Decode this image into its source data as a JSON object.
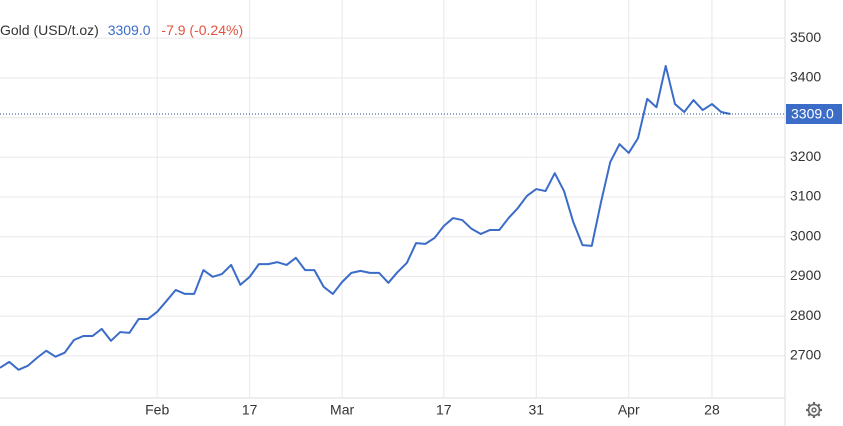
{
  "chart_data": {
    "type": "line",
    "title": "Gold (USD/t.oz)",
    "last_value_label": "3309.0",
    "change": "-7.9 (-0.24%)",
    "color": "#3b6cc8",
    "change_color": "#e0533f",
    "x": [
      0,
      1,
      2,
      3,
      4,
      5,
      6,
      7,
      8,
      9,
      10,
      11,
      12,
      13,
      14,
      15,
      16,
      17,
      18,
      19,
      20,
      21,
      22,
      23,
      24,
      25,
      26,
      27,
      28,
      29,
      30,
      31,
      32,
      33,
      34,
      35,
      36,
      37,
      38,
      39,
      40,
      41,
      42,
      43,
      44,
      45,
      46,
      47,
      48,
      49,
      50,
      51,
      52,
      53,
      54,
      55,
      56,
      57,
      58,
      59,
      60,
      61,
      62,
      63,
      64,
      65,
      66,
      67,
      68,
      69,
      70,
      71,
      72,
      73,
      74,
      75,
      76,
      77,
      78,
      79
    ],
    "values": [
      2670,
      2685,
      2665,
      2675,
      2695,
      2713,
      2698,
      2708,
      2740,
      2750,
      2750,
      2768,
      2738,
      2760,
      2758,
      2793,
      2793,
      2811,
      2838,
      2866,
      2856,
      2856,
      2916,
      2899,
      2906,
      2929,
      2879,
      2899,
      2931,
      2931,
      2936,
      2929,
      2947,
      2916,
      2916,
      2874,
      2856,
      2886,
      2909,
      2914,
      2909,
      2909,
      2884,
      2911,
      2934,
      2984,
      2982,
      2997,
      3027,
      3047,
      3042,
      3020,
      3007,
      3017,
      3017,
      3047,
      3072,
      3103,
      3120,
      3115,
      3160,
      3115,
      3037,
      2979,
      2977,
      3087,
      3188,
      3233,
      3211,
      3248,
      3347,
      3326,
      3430,
      3334,
      3314,
      3344,
      3319,
      3334,
      3314,
      3309
    ],
    "xlim": [
      0,
      84.9
    ],
    "xticks": [
      {
        "value": 17,
        "label": "Feb"
      },
      {
        "value": 27,
        "label": "17"
      },
      {
        "value": 37,
        "label": "Mar"
      },
      {
        "value": 48,
        "label": "17"
      },
      {
        "value": 58,
        "label": "31"
      },
      {
        "value": 68,
        "label": "Apr"
      },
      {
        "value": 77,
        "label": "28"
      }
    ],
    "ylim": [
      2594,
      3596
    ],
    "yticks": [
      2700,
      2800,
      2900,
      3000,
      3100,
      3200,
      3300,
      3400,
      3500
    ],
    "grid": true
  }
}
